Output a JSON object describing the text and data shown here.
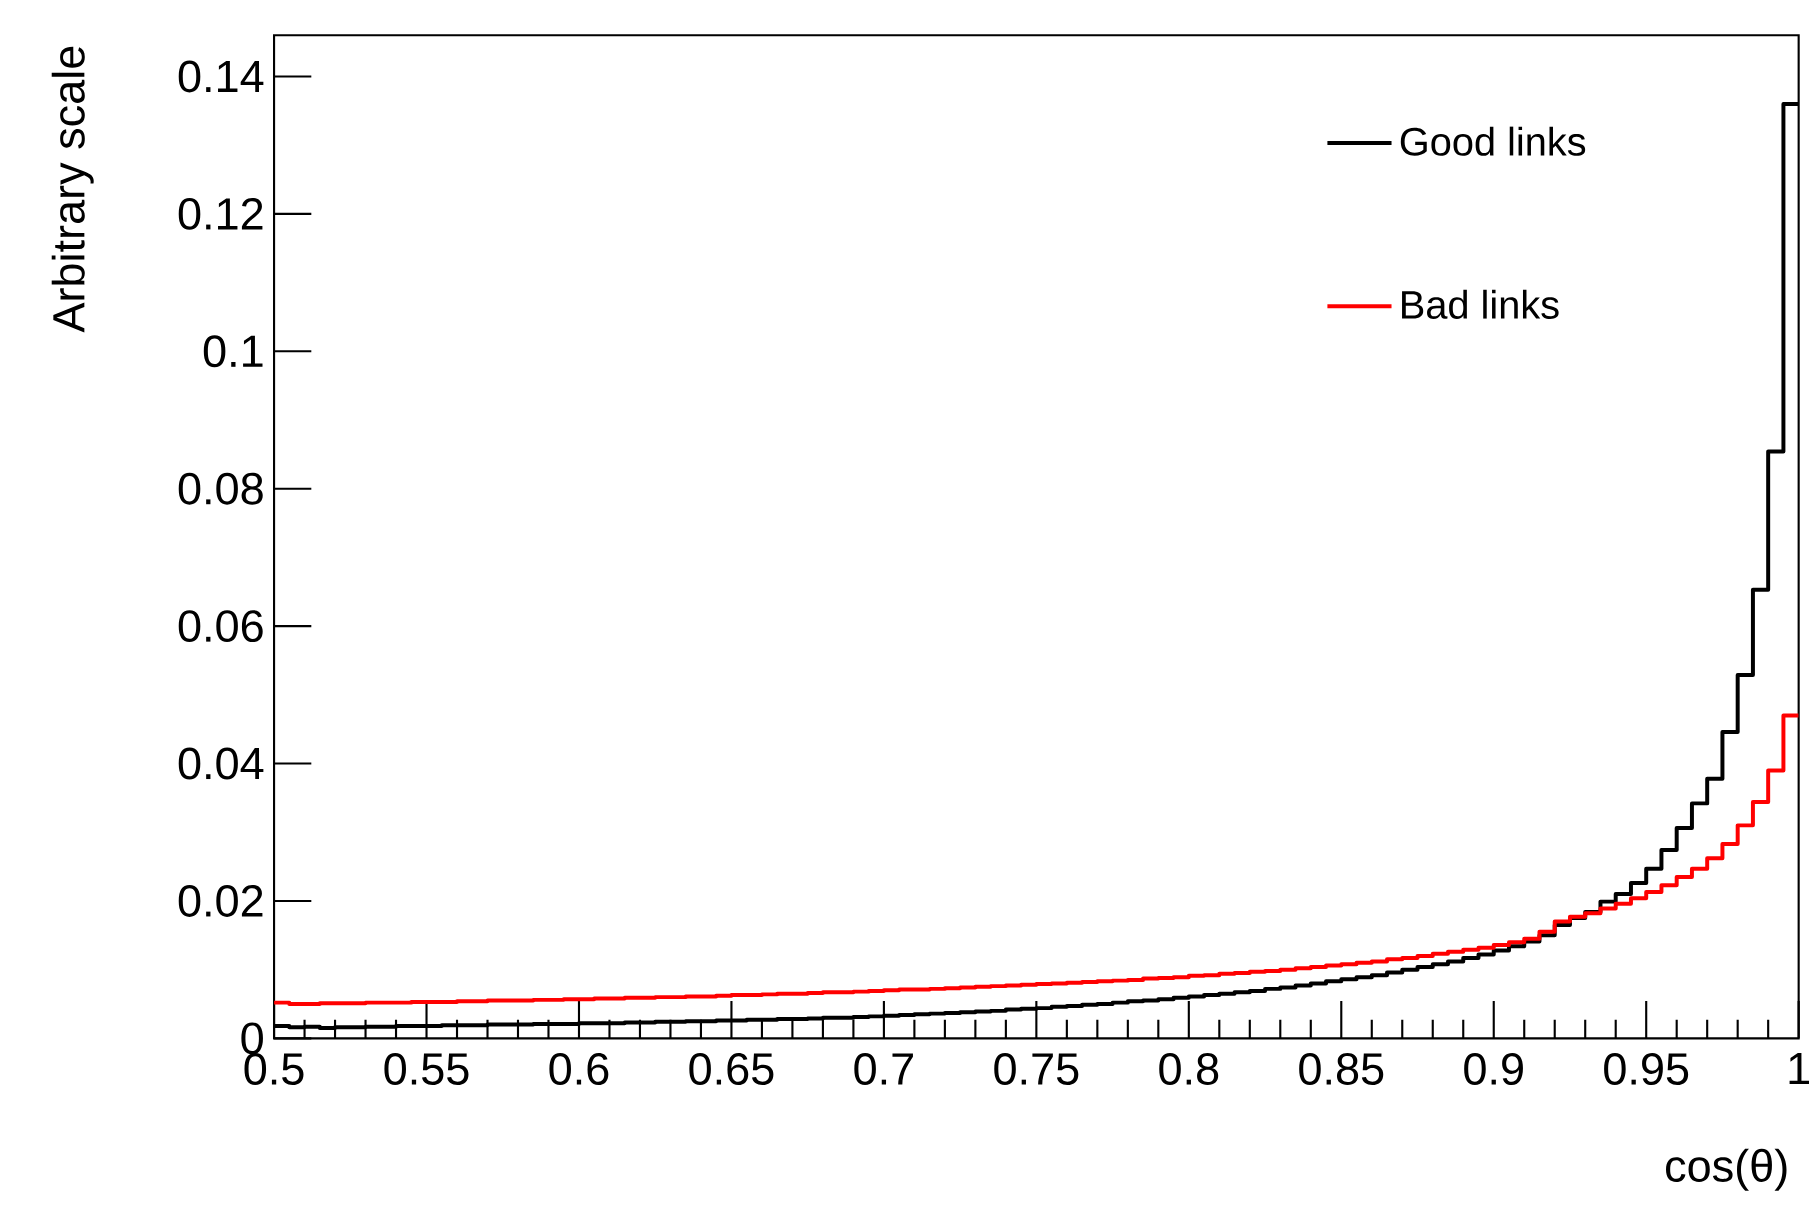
{
  "chart_data": {
    "type": "step",
    "xlabel": "cos(θ)",
    "ylabel": "Arbitrary scale",
    "x": [
      0.5,
      0.505,
      0.51,
      0.515,
      0.52,
      0.525,
      0.53,
      0.535,
      0.54,
      0.545,
      0.55,
      0.555,
      0.56,
      0.565,
      0.57,
      0.575,
      0.58,
      0.585,
      0.59,
      0.595,
      0.6,
      0.605,
      0.61,
      0.615,
      0.62,
      0.625,
      0.63,
      0.635,
      0.64,
      0.645,
      0.65,
      0.655,
      0.66,
      0.665,
      0.67,
      0.675,
      0.68,
      0.685,
      0.69,
      0.695,
      0.7,
      0.705,
      0.71,
      0.715,
      0.72,
      0.725,
      0.73,
      0.735,
      0.74,
      0.745,
      0.75,
      0.755,
      0.76,
      0.765,
      0.77,
      0.775,
      0.78,
      0.785,
      0.79,
      0.795,
      0.8,
      0.805,
      0.81,
      0.815,
      0.82,
      0.825,
      0.83,
      0.835,
      0.84,
      0.845,
      0.85,
      0.855,
      0.86,
      0.865,
      0.87,
      0.875,
      0.88,
      0.885,
      0.89,
      0.895,
      0.9,
      0.905,
      0.91,
      0.915,
      0.92,
      0.925,
      0.93,
      0.935,
      0.94,
      0.945,
      0.95,
      0.955,
      0.96,
      0.965,
      0.97,
      0.975,
      0.98,
      0.985,
      0.99,
      0.995,
      1
    ],
    "series": [
      {
        "name": "Good links",
        "color": "#000000",
        "values": [
          0.0018,
          0.0016,
          0.0017,
          0.0015,
          0.0016,
          0.0016,
          0.0017,
          0.0017,
          0.0018,
          0.0018,
          0.0018,
          0.0019,
          0.0019,
          0.0019,
          0.002,
          0.002,
          0.002,
          0.0021,
          0.0021,
          0.0021,
          0.0022,
          0.0022,
          0.0022,
          0.0023,
          0.0023,
          0.0024,
          0.0024,
          0.0025,
          0.0025,
          0.0026,
          0.0026,
          0.0027,
          0.0027,
          0.0028,
          0.0028,
          0.0029,
          0.003,
          0.003,
          0.0031,
          0.0032,
          0.0033,
          0.0034,
          0.0035,
          0.0036,
          0.0037,
          0.0038,
          0.0039,
          0.004,
          0.0042,
          0.0043,
          0.0044,
          0.0046,
          0.0047,
          0.0049,
          0.005,
          0.0052,
          0.0054,
          0.0055,
          0.0057,
          0.0059,
          0.0061,
          0.0063,
          0.0065,
          0.0067,
          0.0069,
          0.0072,
          0.0074,
          0.0077,
          0.008,
          0.0083,
          0.0086,
          0.0089,
          0.0092,
          0.0096,
          0.01,
          0.0104,
          0.0108,
          0.0112,
          0.0117,
          0.0122,
          0.0128,
          0.0134,
          0.0141,
          0.015,
          0.0165,
          0.0175,
          0.0184,
          0.0199,
          0.021,
          0.0226,
          0.0247,
          0.0274,
          0.0306,
          0.0342,
          0.0378,
          0.0446,
          0.0529,
          0.0653,
          0.0854,
          0.136,
          0.136
        ]
      },
      {
        "name": "Bad links",
        "color": "#ff0000",
        "values": [
          0.0052,
          0.005,
          0.005,
          0.0051,
          0.0051,
          0.0051,
          0.0052,
          0.0052,
          0.0052,
          0.0053,
          0.0053,
          0.0053,
          0.0054,
          0.0054,
          0.0055,
          0.0055,
          0.0055,
          0.0056,
          0.0056,
          0.0057,
          0.0057,
          0.0058,
          0.0058,
          0.0059,
          0.0059,
          0.006,
          0.006,
          0.0061,
          0.0061,
          0.0062,
          0.0063,
          0.0063,
          0.0064,
          0.0065,
          0.0065,
          0.0066,
          0.0067,
          0.0067,
          0.0068,
          0.0069,
          0.007,
          0.0071,
          0.0071,
          0.0072,
          0.0073,
          0.0074,
          0.0075,
          0.0076,
          0.0077,
          0.0078,
          0.0079,
          0.008,
          0.0081,
          0.0082,
          0.0083,
          0.0084,
          0.0085,
          0.0087,
          0.0088,
          0.0089,
          0.0091,
          0.0092,
          0.0094,
          0.0095,
          0.0097,
          0.0098,
          0.01,
          0.0102,
          0.0104,
          0.0106,
          0.0108,
          0.011,
          0.0112,
          0.0115,
          0.0117,
          0.012,
          0.0123,
          0.0126,
          0.0129,
          0.0132,
          0.0136,
          0.014,
          0.0145,
          0.0155,
          0.017,
          0.0177,
          0.0182,
          0.0189,
          0.0196,
          0.0204,
          0.0213,
          0.0223,
          0.0235,
          0.0247,
          0.0262,
          0.0283,
          0.031,
          0.0344,
          0.039,
          0.047,
          0.047
        ]
      }
    ],
    "xlim": [
      0.5,
      1
    ],
    "ylim": [
      0,
      0.146
    ],
    "xticks": [
      0.5,
      0.55,
      0.6,
      0.65,
      0.7,
      0.75,
      0.8,
      0.85,
      0.9,
      0.95,
      1
    ],
    "yticks": [
      0,
      0.02,
      0.04,
      0.06,
      0.08,
      0.1,
      0.12,
      0.14
    ],
    "legend": "top right",
    "grid": false
  }
}
